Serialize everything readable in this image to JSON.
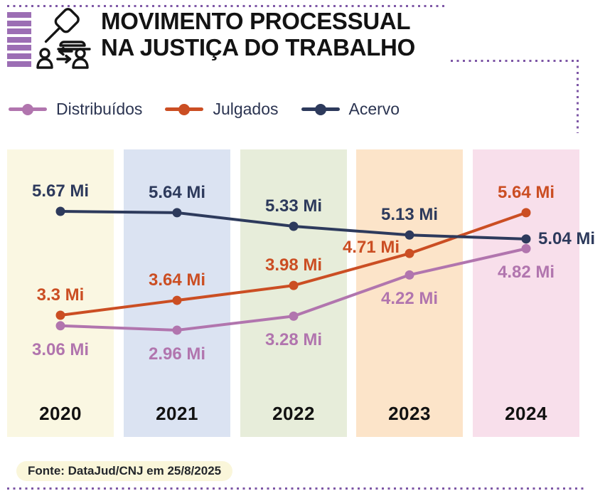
{
  "header": {
    "title_line1": "MOVIMENTO PROCESSUAL",
    "title_line2": "NA JUSTIÇA DO TRABALHO"
  },
  "legend": {
    "items": [
      {
        "label": "Distribuídos",
        "color": "#b175ae"
      },
      {
        "label": "Julgados",
        "color": "#cb4e23"
      },
      {
        "label": "Acervo",
        "color": "#2d3a5c"
      }
    ]
  },
  "chart_data": {
    "type": "line",
    "title": "Movimento processual na Justiça do Trabalho",
    "categories": [
      "2020",
      "2021",
      "2022",
      "2023",
      "2024"
    ],
    "unit": "Mi",
    "series": [
      {
        "name": "Distribuídos",
        "color": "#b175ae",
        "values": [
          3.06,
          2.96,
          3.28,
          4.22,
          4.82
        ],
        "labels": [
          "3.06 Mi",
          "2.96 Mi",
          "3.28 Mi",
          "4.22 Mi",
          "4.82 Mi"
        ]
      },
      {
        "name": "Julgados",
        "color": "#cb4e23",
        "values": [
          3.3,
          3.64,
          3.98,
          4.71,
          5.64
        ],
        "labels": [
          "3.3 Mi",
          "3.64 Mi",
          "3.98 Mi",
          "4.71 Mi",
          "5.64 Mi"
        ]
      },
      {
        "name": "Acervo",
        "color": "#2d3a5c",
        "values": [
          5.67,
          5.64,
          5.33,
          5.13,
          5.04
        ],
        "labels": [
          "5.67 Mi",
          "5.64 Mi",
          "5.33 Mi",
          "5.13 Mi",
          "5.04 Mi"
        ]
      }
    ],
    "band_colors": [
      "#faf7e2",
      "#dbe3f2",
      "#e7edda",
      "#fce4c9",
      "#f8dfeb"
    ],
    "xlabel": "",
    "ylabel": "",
    "ylim": [
      0.5,
      7.1
    ],
    "grid": false,
    "legend_position": "top"
  },
  "footer": {
    "source": "Fonte: DataJud/CNJ em 25/8/2025"
  },
  "colors": {
    "accent_purple": "#7e57a6",
    "stripe_purple": "#9c6eb4",
    "title_text": "#131313",
    "legend_text": "#2b3451",
    "source_bg": "#faf6da"
  }
}
